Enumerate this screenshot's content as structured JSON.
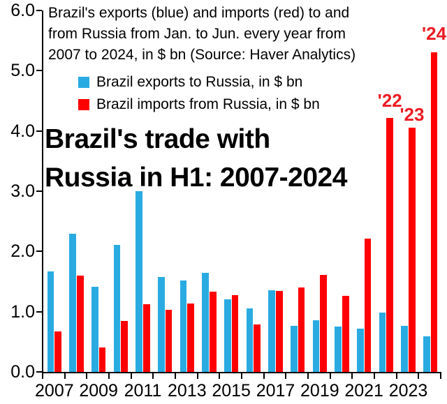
{
  "chart_data": {
    "type": "bar",
    "title": "Brazil's trade with Russia in H1: 2007-2024",
    "title_lines": [
      "Brazil's trade with",
      "Russia in H1: 2007-2024"
    ],
    "subtitle": "Brazil's exports (blue) and imports (red) to and from Russia from Jan. to Jun. every year from 2007 to 2024, in $ bn (Source: Haver Analytics)",
    "subtitle_lines": [
      "Brazil's exports (blue) and imports (red) to and",
      "from Russia from Jan. to Jun. every year from",
      "2007 to 2024, in $ bn (Source: Haver Analytics)"
    ],
    "categories": [
      "2007",
      "2008",
      "2009",
      "2010",
      "2011",
      "2012",
      "2013",
      "2014",
      "2015",
      "2016",
      "2017",
      "2018",
      "2019",
      "2020",
      "2021",
      "2022",
      "2023",
      "2024"
    ],
    "series": [
      {
        "name": "Brazil exports to Russia, in $ bn",
        "color": "#29abe2",
        "values": [
          1.67,
          2.29,
          1.41,
          2.11,
          3.0,
          1.57,
          1.52,
          1.65,
          1.21,
          1.06,
          1.35,
          0.77,
          0.86,
          0.75,
          0.72,
          0.98,
          0.77,
          0.59
        ]
      },
      {
        "name": "Brazil imports from Russia, in $ bn",
        "color": "#ff0000",
        "values": [
          0.67,
          1.6,
          0.4,
          0.84,
          1.12,
          1.03,
          1.13,
          1.33,
          1.28,
          0.79,
          1.34,
          1.4,
          1.61,
          1.26,
          2.21,
          4.22,
          4.05,
          5.3
        ]
      }
    ],
    "ylim": [
      0,
      6
    ],
    "ytick_labels": [
      "0.0",
      "1.0",
      "2.0",
      "3.0",
      "4.0",
      "5.0",
      "6.0"
    ],
    "xtick_labels": [
      "2007",
      "2009",
      "2011",
      "2013",
      "2015",
      "2017",
      "2019",
      "2021",
      "2023"
    ],
    "annotations": [
      {
        "text": "'22",
        "year": "2022",
        "y": 4.35
      },
      {
        "text": "'23",
        "year": "2023",
        "y": 4.12
      },
      {
        "text": "'24",
        "year": "2024",
        "y": 5.47
      }
    ],
    "annotation_color": "#ec1c24",
    "axis_color": "#000000",
    "grid": false,
    "legend_position": "top-left-inside"
  }
}
